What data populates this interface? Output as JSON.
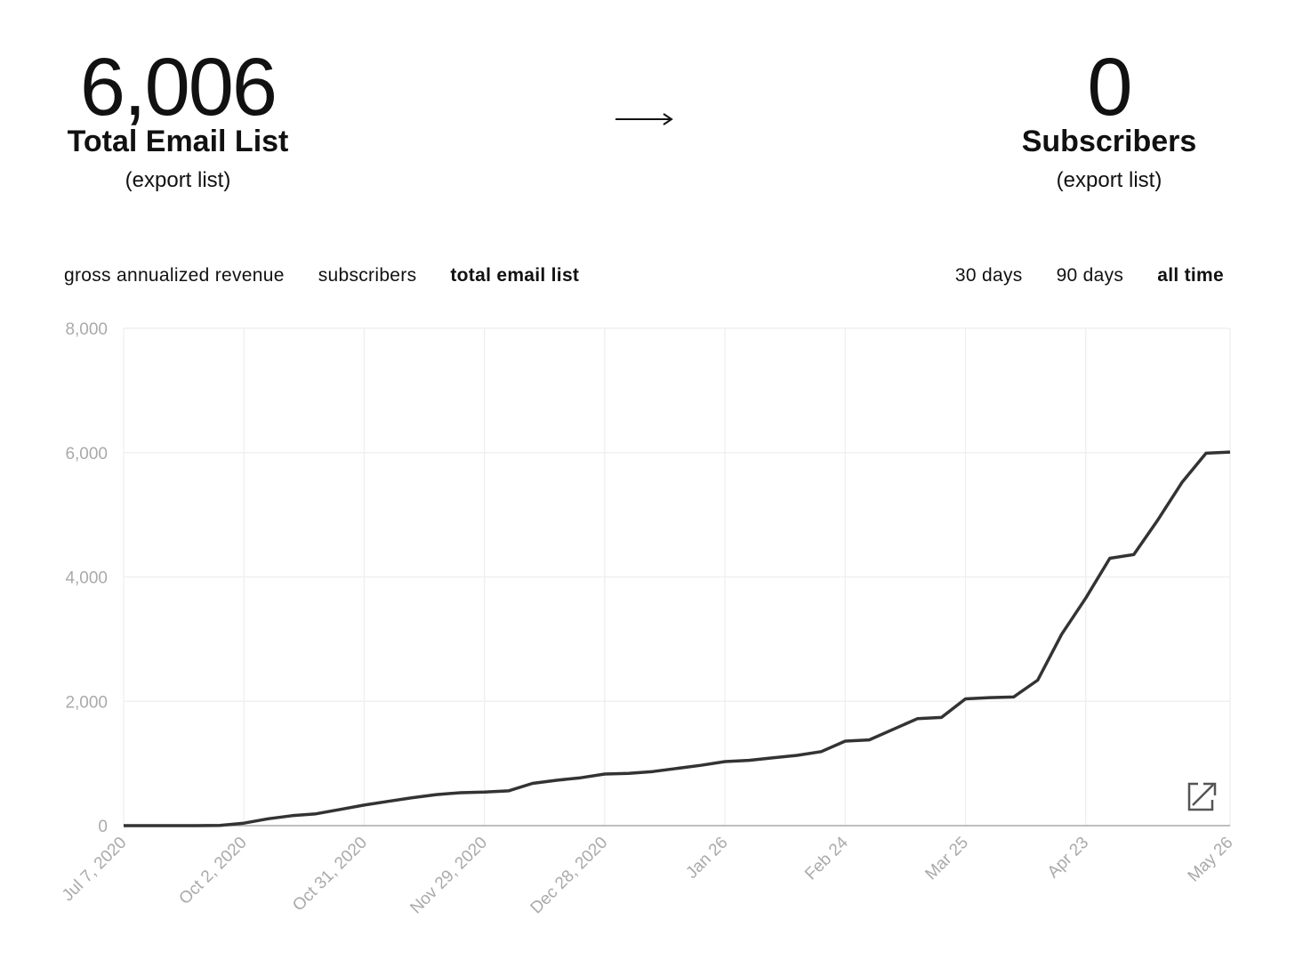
{
  "stats": [
    {
      "value": "6,006",
      "label": "Total Email List",
      "link": "(export list)"
    },
    {
      "value": "0",
      "label": "Subscribers",
      "link": "(export list)"
    }
  ],
  "tabs": {
    "metrics": {
      "items": [
        "gross annualized revenue",
        "subscribers",
        "total email list"
      ],
      "active": 2
    },
    "ranges": {
      "items": [
        "30 days",
        "90 days",
        "all time"
      ],
      "active": 2
    }
  },
  "chart_data": {
    "type": "line",
    "categories": [
      "Jul 7, 2020",
      null,
      null,
      null,
      null,
      "Oct 2, 2020",
      null,
      null,
      null,
      null,
      "Oct 31, 2020",
      null,
      null,
      null,
      null,
      "Nov 29, 2020",
      null,
      null,
      null,
      null,
      "Dec 28, 2020",
      null,
      null,
      null,
      null,
      "Jan 26",
      null,
      null,
      null,
      null,
      "Feb 24",
      null,
      null,
      null,
      null,
      "Mar 25",
      null,
      null,
      null,
      null,
      "Apr 23",
      null,
      null,
      null,
      null,
      null,
      "May 26"
    ],
    "values": [
      0,
      0,
      0,
      0,
      5,
      40,
      110,
      160,
      190,
      260,
      330,
      390,
      450,
      500,
      530,
      540,
      560,
      680,
      730,
      770,
      830,
      840,
      870,
      920,
      970,
      1030,
      1050,
      1090,
      1130,
      1190,
      1360,
      1380,
      1550,
      1720,
      1740,
      2040,
      2060,
      2070,
      2340,
      3080,
      3660,
      4300,
      4360,
      4920,
      5520,
      5990,
      6010
    ],
    "color": "#333333",
    "ylim": [
      0,
      8000
    ],
    "yticks": [
      0,
      {
        "value": 2000,
        "label": "2,000"
      },
      {
        "value": 4000,
        "label": "4,000"
      },
      {
        "value": 6000,
        "label": "6,000"
      },
      {
        "value": 8000,
        "label": "8,000"
      }
    ],
    "grid": true
  }
}
